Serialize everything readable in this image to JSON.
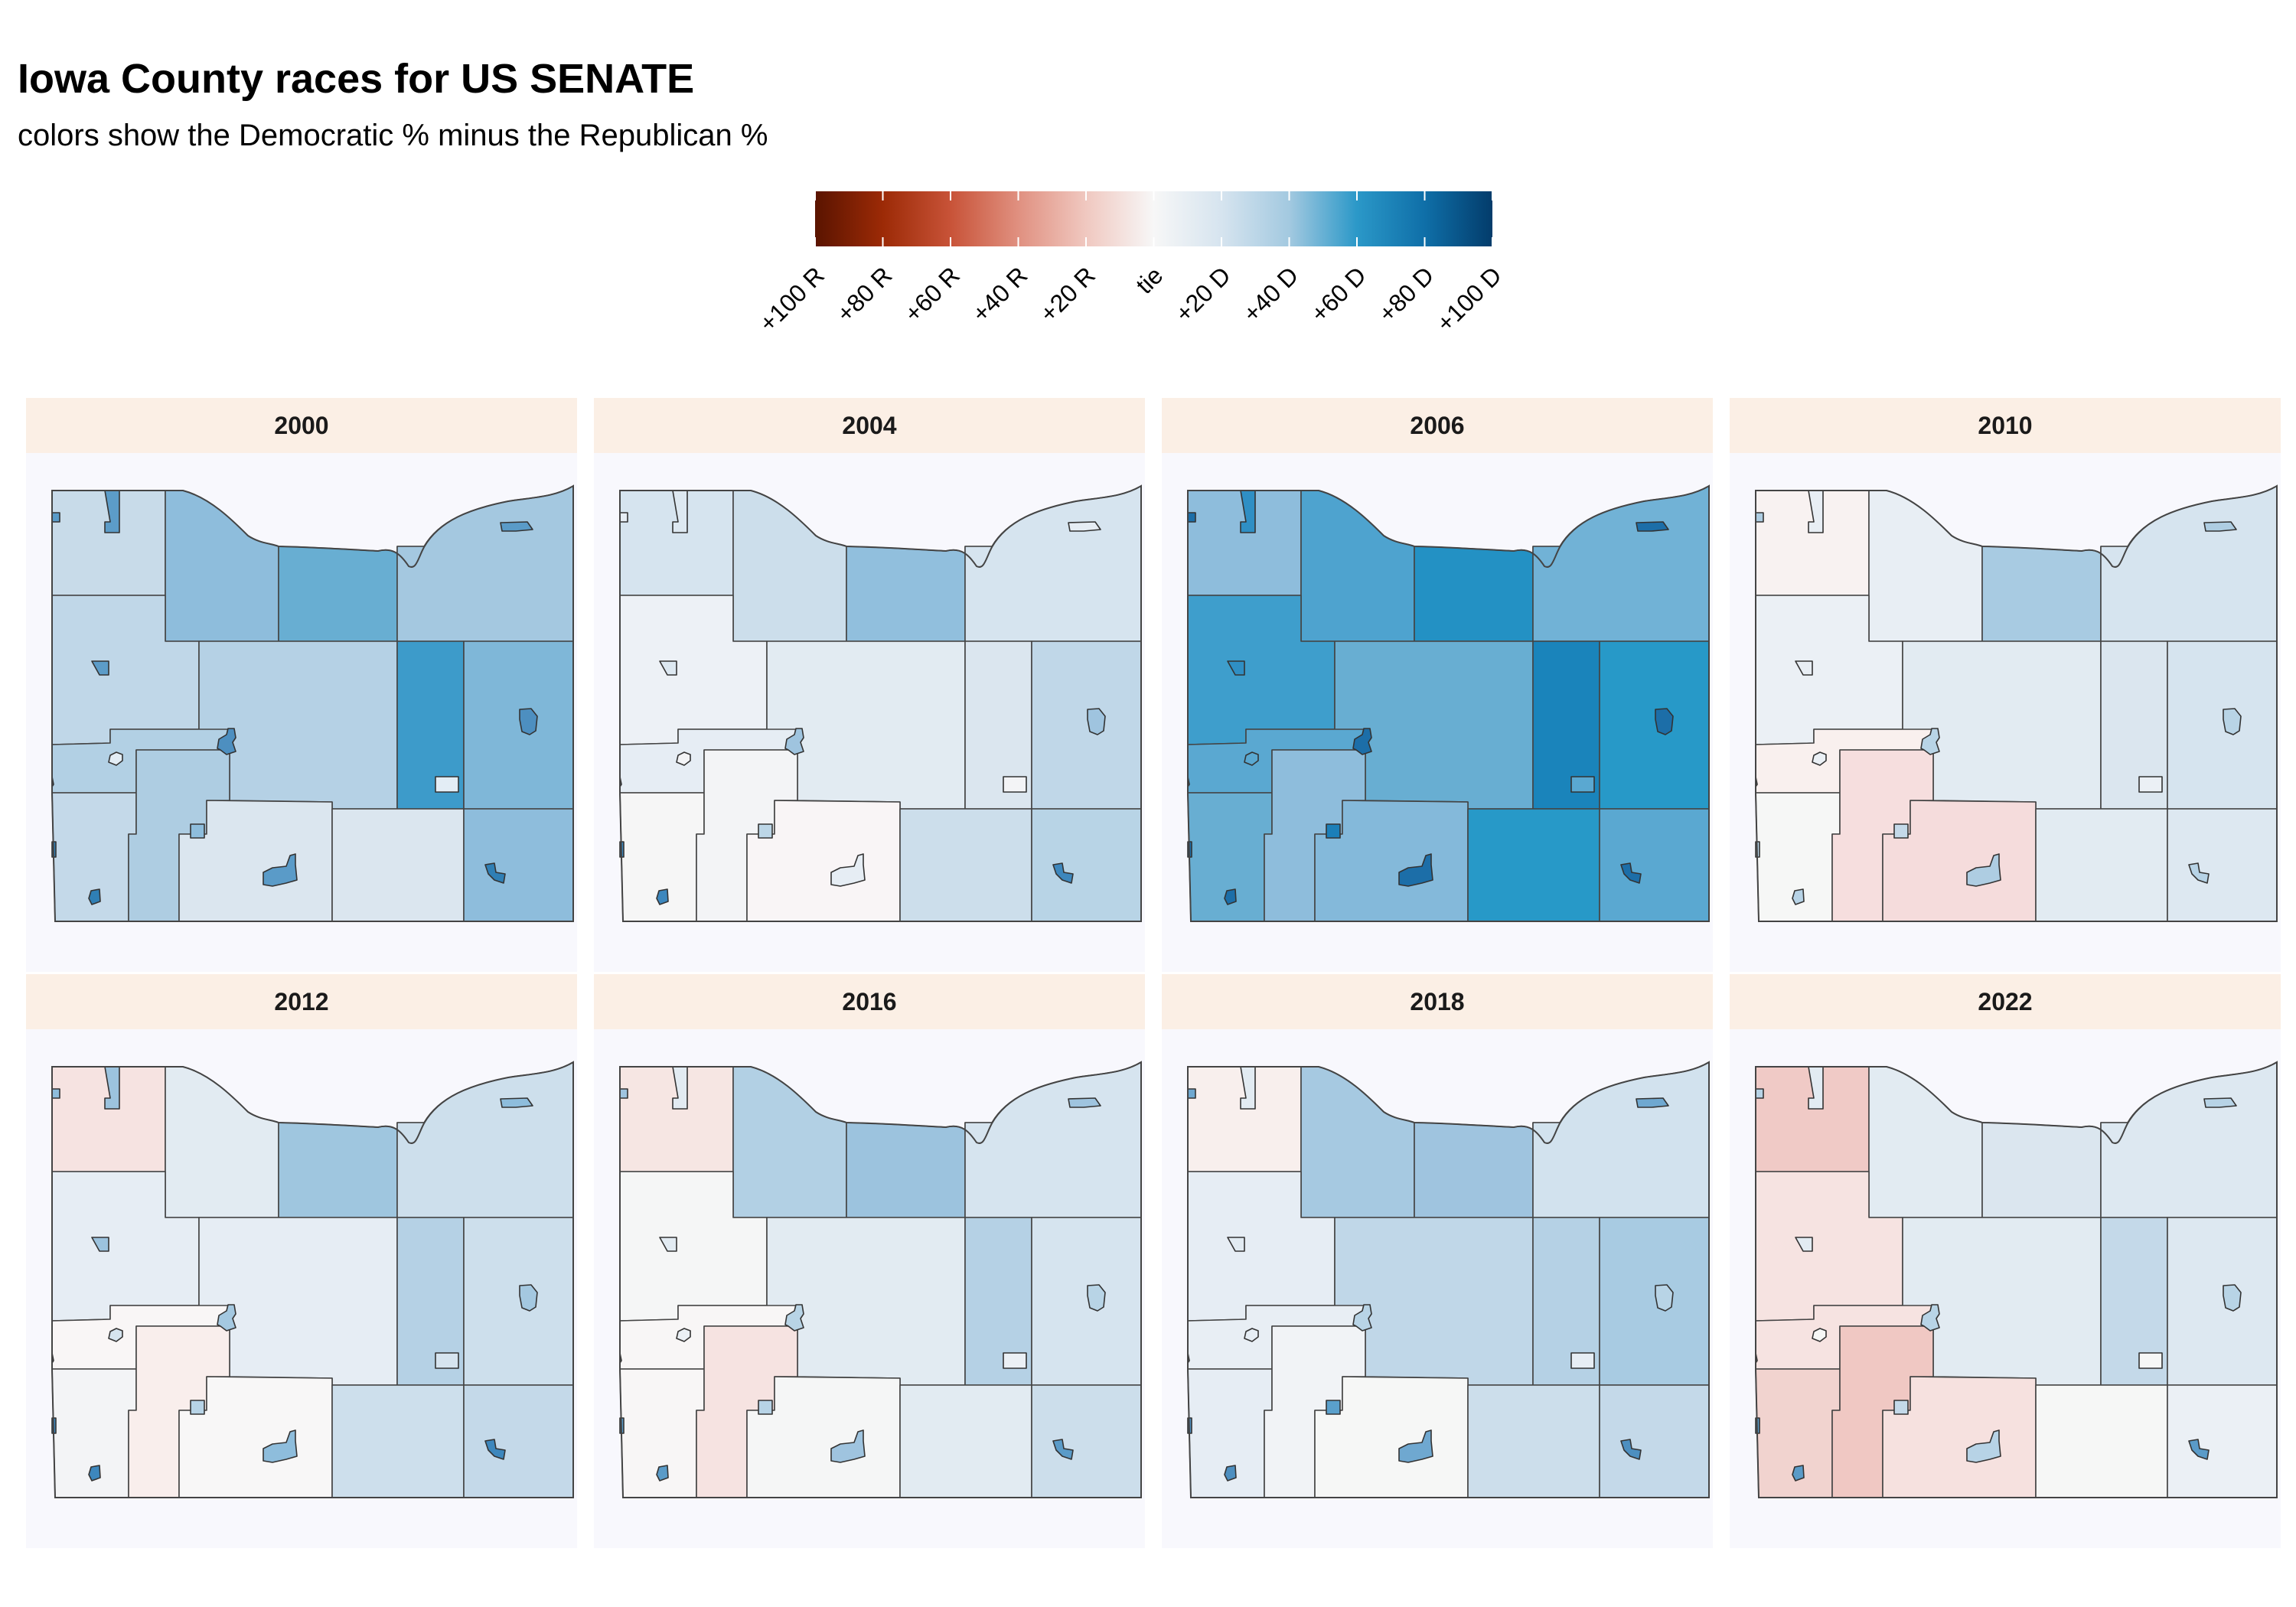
{
  "title": "Iowa County races for US SENATE",
  "subtitle": "colors show the Democratic % minus the Republican %",
  "legend": {
    "ticks": [
      "+100 R",
      "+80 R",
      "+60 R",
      "+40 R",
      "+20 R",
      "tie",
      "+20 D",
      "+40 D",
      "+60 D",
      "+80 D",
      "+100 D"
    ],
    "tick_values": [
      -100,
      -80,
      -60,
      -40,
      -20,
      0,
      20,
      40,
      60,
      80,
      100
    ],
    "gradient_stops": [
      {
        "value": -100,
        "color": "#5a1400"
      },
      {
        "value": -80,
        "color": "#9c2a06"
      },
      {
        "value": -60,
        "color": "#c85338"
      },
      {
        "value": -40,
        "color": "#e09080"
      },
      {
        "value": -20,
        "color": "#f0c8c0"
      },
      {
        "value": 0,
        "color": "#f7f7f7"
      },
      {
        "value": 20,
        "color": "#d6e4ef"
      },
      {
        "value": 40,
        "color": "#a3c9e0"
      },
      {
        "value": 60,
        "color": "#2b98c8"
      },
      {
        "value": 80,
        "color": "#0f6fa8"
      },
      {
        "value": 100,
        "color": "#033c6b"
      }
    ]
  },
  "panels": [
    {
      "year": "2000",
      "colors": {
        "nw": "#c8dbe9",
        "ncw": "#8ebddc",
        "nc": "#68aed2",
        "ne": "#a4c8e0",
        "wm": "#c0d7e8",
        "cm": "#b5d1e5",
        "cem": "#3d9bca",
        "em": "#7fb7d8",
        "w2": "#b2d0e4",
        "sw": "#c4d9e9",
        "sc": "#aecde2",
        "sc2": "#dbe6ef",
        "se1": "#dbe6ef",
        "se": "#8ebddc",
        "city1": "#5c9cc8",
        "city2": "#2f7fb5",
        "city3": "#e3edf5",
        "city4": "#5a9bc8",
        "city5": "#8ebddc",
        "city6": "#4d8fc0"
      }
    },
    {
      "year": "2004",
      "colors": {
        "nw": "#d6e4ef",
        "ncw": "#ccdeeb",
        "nc": "#91bfdd",
        "ne": "#d6e4ef",
        "wm": "#edf1f6",
        "cm": "#e2ebf2",
        "cem": "#dbe6ef",
        "em": "#c0d7e8",
        "w2": "#e6edf4",
        "sw": "#f6f6f6",
        "sc": "#f3f4f6",
        "sc2": "#f9f5f6",
        "se1": "#ccdeeb",
        "se": "#b8d4e6",
        "city1": "#dde8f1",
        "city2": "#3d87bd",
        "city3": "#f3f4f6",
        "city4": "#e6edf4",
        "city5": "#bcd6e7",
        "city6": "#9fc4df"
      }
    },
    {
      "year": "2006",
      "colors": {
        "nw": "#8ebddc",
        "ncw": "#4ea3cf",
        "nc": "#2391c4",
        "ne": "#71b2d6",
        "wm": "#3e9ecc",
        "cm": "#68aed2",
        "cem": "#1a84bb",
        "em": "#2799c8",
        "w2": "#5aa8d1",
        "sw": "#68aed2",
        "sc": "#8ebddc",
        "sc2": "#84b9da",
        "se1": "#2799c8",
        "se": "#5aa8d1",
        "city1": "#2f8fc4",
        "city2": "#1c6ea8",
        "city3": "#5aa8d1",
        "city4": "#1c6ea8",
        "city5": "#1c7fb8",
        "city6": "#1c6ea8"
      }
    },
    {
      "year": "2010",
      "colors": {
        "nw": "#f8f2f1",
        "ncw": "#e8eef4",
        "nc": "#a8cbe2",
        "ne": "#d6e4ef",
        "wm": "#ebf0f5",
        "cm": "#e2ebf2",
        "cem": "#dbe6ef",
        "em": "#d6e4ef",
        "w2": "#f9f0ee",
        "sw": "#f6f7f6",
        "sc": "#f6dede",
        "sc2": "#f5dcdc",
        "se1": "#e2ebf2",
        "se": "#dde8f1",
        "city1": "#e8eef4",
        "city2": "#b7d3e6",
        "city3": "#ebf0f5",
        "city4": "#aecde2",
        "city5": "#c4d9e9",
        "city6": "#b8d4e6"
      }
    },
    {
      "year": "2012",
      "colors": {
        "nw": "#f6e3e1",
        "ncw": "#e2ebf2",
        "nc": "#9fc6df",
        "ne": "#cddfec",
        "wm": "#e6edf4",
        "cm": "#e6edf4",
        "cem": "#b5d1e5",
        "em": "#cddfec",
        "w2": "#f9f6f6",
        "sw": "#f3f4f6",
        "sc": "#f9eeec",
        "sc2": "#f8f7f7",
        "se1": "#cddfec",
        "se": "#c4d9e9",
        "city1": "#9cc3de",
        "city2": "#3d87bd",
        "city3": "#d6e4ef",
        "city4": "#8ebddc",
        "city5": "#b7d3e6",
        "city6": "#a4c8e0"
      }
    },
    {
      "year": "2016",
      "colors": {
        "nw": "#f6e6e3",
        "ncw": "#b2d0e4",
        "nc": "#9cc3de",
        "ne": "#d6e4ef",
        "wm": "#f5f6f6",
        "cm": "#e2ebf2",
        "cem": "#b5d1e5",
        "em": "#d6e4ef",
        "w2": "#f8f6f6",
        "sw": "#f8f6f6",
        "sc": "#f6e3e1",
        "sc2": "#f5f6f6",
        "se1": "#e2ebf2",
        "se": "#ccdeeb",
        "city1": "#e2ebf2",
        "city2": "#5a9bc8",
        "city3": "#ebf0f5",
        "city4": "#9fc4df",
        "city5": "#b7d3e6",
        "city6": "#b8d4e6"
      }
    },
    {
      "year": "2018",
      "colors": {
        "nw": "#f8efed",
        "ncw": "#a6c9e1",
        "nc": "#9fc4df",
        "ne": "#d2e2ee",
        "wm": "#e6edf4",
        "cm": "#c0d7e8",
        "cem": "#b5d1e5",
        "em": "#a8cbe2",
        "w2": "#e8eef4",
        "sw": "#e6edf4",
        "sc": "#f1f3f6",
        "sc2": "#f6f7f6",
        "se1": "#ccdeeb",
        "se": "#c4d9e9",
        "city1": "#e2ebf2",
        "city2": "#4d8fc0",
        "city3": "#e6edf4",
        "city4": "#6fa8d0",
        "city5": "#5aa0cc",
        "city6": "#b8d4e6"
      }
    },
    {
      "year": "2022",
      "colors": {
        "nw": "#f0cac6",
        "ncw": "#e2ebf2",
        "nc": "#dbe6ef",
        "ne": "#dde8f1",
        "wm": "#f6e3e1",
        "cm": "#e2ebf2",
        "cem": "#c4d9e9",
        "em": "#dde8f1",
        "w2": "#f6e3e1",
        "sw": "#f1d3cf",
        "sc": "#f0c8c3",
        "sc2": "#f6e1df",
        "se1": "#f6f7f6",
        "se": "#ebf0f5",
        "city1": "#e2ebf2",
        "city2": "#5a9bc8",
        "city3": "#f6f7f6",
        "city4": "#b7d3e6",
        "city5": "#c4d9e9",
        "city6": "#b8d4e6"
      }
    }
  ]
}
